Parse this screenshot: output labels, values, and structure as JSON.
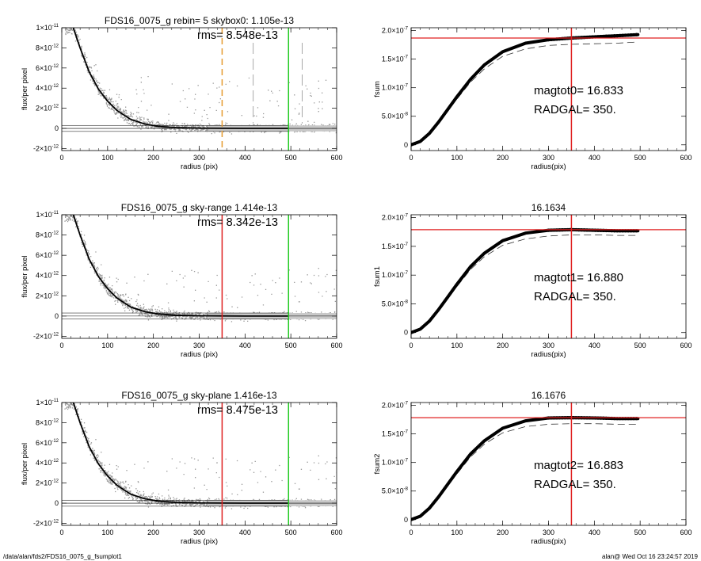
{
  "footer": {
    "path": "/data/alan/fds2/FDS16_0075_g_fsumplot1",
    "stamp": "alan@  Wed Oct 16 23:24:57 2019"
  },
  "chart_data": [
    {
      "id": "profile-1",
      "type": "scatter",
      "title": "FDS16_0075_g rebin= 5    skybox0:  1.105e-13",
      "annotation": "rms= 8.548e-13",
      "xlabel": "radius (pix)",
      "ylabel": "flux/per pixel",
      "xlim": [
        0,
        600
      ],
      "ylim": [
        -2.2e-12,
        1e-11
      ],
      "xticks": [
        "0",
        "100",
        "200",
        "300",
        "400",
        "500",
        "600"
      ],
      "yticks": [
        {
          "v": 1e-11,
          "t": "1×10",
          "e": "-11"
        },
        {
          "v": 8e-12,
          "t": "8×10",
          "e": "-12"
        },
        {
          "v": 6e-12,
          "t": "6×10",
          "e": "-12"
        },
        {
          "v": 4e-12,
          "t": "4×10",
          "e": "-12"
        },
        {
          "v": 2e-12,
          "t": "2×10",
          "e": "-12"
        },
        {
          "v": 0,
          "t": "0",
          "e": ""
        },
        {
          "v": -2e-12,
          "t": "-2×10",
          "e": "-12"
        }
      ],
      "profile": {
        "x": [
          25,
          40,
          60,
          80,
          100,
          120,
          150,
          180,
          210,
          250,
          300,
          350,
          400,
          495
        ],
        "y": [
          1e-11,
          8e-12,
          5.6e-12,
          3.9e-12,
          2.7e-12,
          1.8e-12,
          9e-13,
          4.5e-13,
          2e-13,
          8e-14,
          3e-14,
          1e-14,
          0,
          0
        ]
      },
      "vlines": [
        {
          "x": 350,
          "color": "#e69a2e",
          "style": "dashed",
          "role": "radgal-marker"
        },
        {
          "x": 418,
          "color": "#808080",
          "style": "longdash",
          "role": "marker"
        },
        {
          "x": 525,
          "color": "#808080",
          "style": "longdash",
          "role": "marker"
        },
        {
          "x": 495,
          "color": "#22cc22",
          "style": "solid",
          "role": "green-marker"
        }
      ],
      "hband": [
        -3e-13,
        3e-13
      ]
    },
    {
      "id": "curve-1",
      "type": "line",
      "title": "",
      "ylabel": "fsum",
      "xlabel": "radius(pix)",
      "annotation1": "magtot0=  16.833",
      "annotation2": "RADGAL=    350.",
      "xlim": [
        0,
        600
      ],
      "ylim": [
        -1e-08,
        2.05e-07
      ],
      "xticks": [
        "0",
        "100",
        "200",
        "300",
        "400",
        "500",
        "600"
      ],
      "yticks": [
        {
          "v": 2e-07,
          "t": "2.0×10",
          "e": "-7"
        },
        {
          "v": 1.5e-07,
          "t": "1.5×10",
          "e": "-7"
        },
        {
          "v": 1e-07,
          "t": "1.0×10",
          "e": "-7"
        },
        {
          "v": 5e-08,
          "t": "5.0×10",
          "e": "-8"
        },
        {
          "v": 0,
          "t": "0",
          "e": ""
        }
      ],
      "cumulative": {
        "x": [
          0,
          20,
          40,
          60,
          80,
          100,
          130,
          160,
          200,
          250,
          300,
          350,
          400,
          450,
          495
        ],
        "y": [
          0,
          6e-09,
          2e-08,
          4e-08,
          6.2e-08,
          8.4e-08,
          1.15e-07,
          1.4e-07,
          1.63e-07,
          1.78e-07,
          1.84e-07,
          1.87e-07,
          1.89e-07,
          1.91e-07,
          1.93e-07
        ]
      },
      "dashed": {
        "x": [
          0,
          20,
          40,
          60,
          80,
          100,
          130,
          160,
          200,
          250,
          300,
          350,
          400,
          450,
          495
        ],
        "y": [
          0,
          6e-09,
          2e-08,
          4e-08,
          6e-08,
          8e-08,
          1.1e-07,
          1.33e-07,
          1.55e-07,
          1.68e-07,
          1.74e-07,
          1.76e-07,
          1.77e-07,
          1.78e-07,
          1.8e-07
        ]
      },
      "hline": 1.87e-07,
      "vline": 350
    },
    {
      "id": "profile-2",
      "type": "scatter",
      "title": "FDS16_0075_g sky-range  1.414e-13",
      "annotation": "rms= 8.342e-13",
      "xlabel": "radius (pix)",
      "ylabel": "flux/per pixel",
      "xlim": [
        0,
        600
      ],
      "ylim": [
        -2.2e-12,
        1e-11
      ],
      "xticks": [
        "0",
        "100",
        "200",
        "300",
        "400",
        "500",
        "600"
      ],
      "yticks": [
        {
          "v": 1e-11,
          "t": "1×10",
          "e": "-11"
        },
        {
          "v": 8e-12,
          "t": "8×10",
          "e": "-12"
        },
        {
          "v": 6e-12,
          "t": "6×10",
          "e": "-12"
        },
        {
          "v": 4e-12,
          "t": "4×10",
          "e": "-12"
        },
        {
          "v": 2e-12,
          "t": "2×10",
          "e": "-12"
        },
        {
          "v": 0,
          "t": "0",
          "e": ""
        },
        {
          "v": -2e-12,
          "t": "-2×10",
          "e": "-12"
        }
      ],
      "profile": {
        "x": [
          25,
          40,
          60,
          80,
          100,
          120,
          150,
          180,
          210,
          250,
          300,
          350,
          400,
          495
        ],
        "y": [
          1e-11,
          8e-12,
          5.6e-12,
          3.9e-12,
          2.7e-12,
          1.8e-12,
          9e-13,
          4.5e-13,
          2e-13,
          8e-14,
          3e-14,
          1e-14,
          0,
          0
        ]
      },
      "vlines": [
        {
          "x": 350,
          "color": "#e02020",
          "style": "solid",
          "role": "radgal-marker"
        },
        {
          "x": 495,
          "color": "#22cc22",
          "style": "solid",
          "role": "green-marker"
        }
      ],
      "hband": [
        -3e-13,
        3e-13
      ]
    },
    {
      "id": "curve-2",
      "type": "line",
      "title": "16.1634",
      "ylabel": "fsum1",
      "xlabel": "radius(pix)",
      "annotation1": "magtot1=  16.880",
      "annotation2": "RADGAL=    350.",
      "xlim": [
        0,
        600
      ],
      "ylim": [
        -1e-08,
        2.05e-07
      ],
      "xticks": [
        "0",
        "100",
        "200",
        "300",
        "400",
        "500",
        "600"
      ],
      "yticks": [
        {
          "v": 2e-07,
          "t": "2.0×10",
          "e": "-7"
        },
        {
          "v": 1.5e-07,
          "t": "1.5×10",
          "e": "-7"
        },
        {
          "v": 1e-07,
          "t": "1.0×10",
          "e": "-7"
        },
        {
          "v": 5e-08,
          "t": "5.0×10",
          "e": "-8"
        },
        {
          "v": 0,
          "t": "0",
          "e": ""
        }
      ],
      "cumulative": {
        "x": [
          0,
          20,
          40,
          60,
          80,
          100,
          130,
          160,
          200,
          250,
          300,
          350,
          400,
          450,
          495
        ],
        "y": [
          0,
          6e-09,
          2e-08,
          4e-08,
          6.2e-08,
          8.4e-08,
          1.15e-07,
          1.38e-07,
          1.6e-07,
          1.73e-07,
          1.78e-07,
          1.79e-07,
          1.78e-07,
          1.77e-07,
          1.77e-07
        ]
      },
      "dashed": {
        "x": [
          0,
          20,
          40,
          60,
          80,
          100,
          130,
          160,
          200,
          250,
          300,
          350,
          400,
          450,
          495
        ],
        "y": [
          0,
          6e-09,
          2e-08,
          4e-08,
          6e-08,
          8e-08,
          1.1e-07,
          1.32e-07,
          1.52e-07,
          1.63e-07,
          1.68e-07,
          1.7e-07,
          1.7e-07,
          1.69e-07,
          1.69e-07
        ]
      },
      "hline": 1.79e-07,
      "vline": 350
    },
    {
      "id": "profile-3",
      "type": "scatter",
      "title": "FDS16_0075_g sky-plane  1.416e-13",
      "annotation": "rms= 8.475e-13",
      "xlabel": "radius (pix)",
      "ylabel": "flux/per pixel",
      "xlim": [
        0,
        600
      ],
      "ylim": [
        -2.2e-12,
        1e-11
      ],
      "xticks": [
        "0",
        "100",
        "200",
        "300",
        "400",
        "500",
        "600"
      ],
      "yticks": [
        {
          "v": 1e-11,
          "t": "1×10",
          "e": "-11"
        },
        {
          "v": 8e-12,
          "t": "8×10",
          "e": "-12"
        },
        {
          "v": 6e-12,
          "t": "6×10",
          "e": "-12"
        },
        {
          "v": 4e-12,
          "t": "4×10",
          "e": "-12"
        },
        {
          "v": 2e-12,
          "t": "2×10",
          "e": "-12"
        },
        {
          "v": 0,
          "t": "0",
          "e": ""
        },
        {
          "v": -2e-12,
          "t": "-2×10",
          "e": "-12"
        }
      ],
      "profile": {
        "x": [
          25,
          40,
          60,
          80,
          100,
          120,
          150,
          180,
          210,
          250,
          300,
          350,
          400,
          495
        ],
        "y": [
          1e-11,
          8e-12,
          5.6e-12,
          3.9e-12,
          2.7e-12,
          1.8e-12,
          9e-13,
          4.5e-13,
          2e-13,
          8e-14,
          3e-14,
          1e-14,
          0,
          0
        ]
      },
      "vlines": [
        {
          "x": 350,
          "color": "#e02020",
          "style": "solid",
          "role": "radgal-marker"
        },
        {
          "x": 495,
          "color": "#22cc22",
          "style": "solid",
          "role": "green-marker"
        }
      ],
      "hband": [
        -3e-13,
        3e-13
      ]
    },
    {
      "id": "curve-3",
      "type": "line",
      "title": "16.1676",
      "ylabel": "fsum2",
      "xlabel": "radius(pix)",
      "annotation1": "magtot2=  16.883",
      "annotation2": "RADGAL=    350.",
      "xlim": [
        0,
        600
      ],
      "ylim": [
        -1e-08,
        2.05e-07
      ],
      "xticks": [
        "0",
        "100",
        "200",
        "300",
        "400",
        "500",
        "600"
      ],
      "yticks": [
        {
          "v": 2e-07,
          "t": "2.0×10",
          "e": "-7"
        },
        {
          "v": 1.5e-07,
          "t": "1.5×10",
          "e": "-7"
        },
        {
          "v": 1e-07,
          "t": "1.0×10",
          "e": "-7"
        },
        {
          "v": 5e-08,
          "t": "5.0×10",
          "e": "-8"
        },
        {
          "v": 0,
          "t": "0",
          "e": ""
        }
      ],
      "cumulative": {
        "x": [
          0,
          20,
          40,
          60,
          80,
          100,
          130,
          160,
          200,
          250,
          300,
          350,
          400,
          450,
          495
        ],
        "y": [
          0,
          6e-09,
          2e-08,
          4e-08,
          6.2e-08,
          8.4e-08,
          1.15e-07,
          1.38e-07,
          1.6e-07,
          1.73e-07,
          1.78e-07,
          1.785e-07,
          1.78e-07,
          1.77e-07,
          1.77e-07
        ]
      },
      "dashed": {
        "x": [
          0,
          20,
          40,
          60,
          80,
          100,
          130,
          160,
          200,
          250,
          300,
          350,
          400,
          450,
          495
        ],
        "y": [
          0,
          6e-09,
          2e-08,
          4e-08,
          6e-08,
          8e-08,
          1.1e-07,
          1.32e-07,
          1.52e-07,
          1.63e-07,
          1.67e-07,
          1.68e-07,
          1.68e-07,
          1.67e-07,
          1.67e-07
        ]
      },
      "hline": 1.785e-07,
      "vline": 350
    }
  ]
}
